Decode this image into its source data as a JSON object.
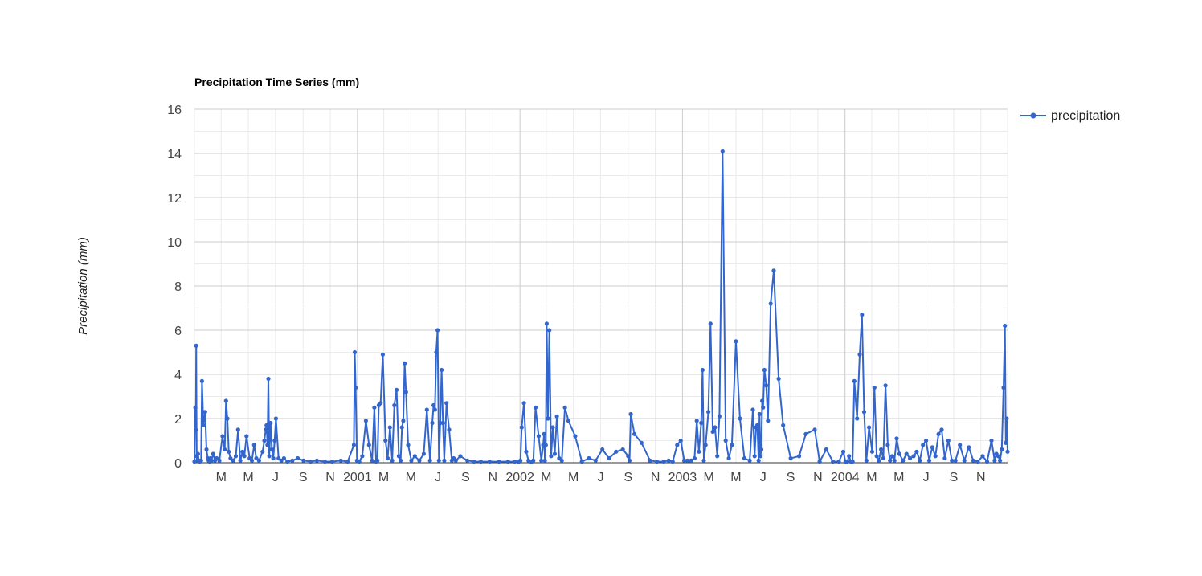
{
  "chart_data": {
    "type": "line",
    "title": "Precipitation Time Series (mm)",
    "xlabel": "",
    "ylabel": "Precipitation (mm)",
    "x_start": "2000-01-01",
    "x_end": "2004-12-31",
    "ylim": [
      0,
      16
    ],
    "y_ticks": [
      "0",
      "2",
      "4",
      "6",
      "8",
      "10",
      "12",
      "14",
      "16"
    ],
    "x_ticks": [
      {
        "label": "M",
        "date": "2000-03-01",
        "major": false
      },
      {
        "label": "M",
        "date": "2000-05-01",
        "major": false
      },
      {
        "label": "J",
        "date": "2000-07-01",
        "major": false
      },
      {
        "label": "S",
        "date": "2000-09-01",
        "major": false
      },
      {
        "label": "N",
        "date": "2000-11-01",
        "major": false
      },
      {
        "label": "2001",
        "date": "2001-01-01",
        "major": true
      },
      {
        "label": "M",
        "date": "2001-03-01",
        "major": false
      },
      {
        "label": "M",
        "date": "2001-05-01",
        "major": false
      },
      {
        "label": "J",
        "date": "2001-07-01",
        "major": false
      },
      {
        "label": "S",
        "date": "2001-09-01",
        "major": false
      },
      {
        "label": "N",
        "date": "2001-11-01",
        "major": false
      },
      {
        "label": "2002",
        "date": "2002-01-01",
        "major": true
      },
      {
        "label": "M",
        "date": "2002-03-01",
        "major": false
      },
      {
        "label": "M",
        "date": "2002-05-01",
        "major": false
      },
      {
        "label": "J",
        "date": "2002-07-01",
        "major": false
      },
      {
        "label": "S",
        "date": "2002-09-01",
        "major": false
      },
      {
        "label": "N",
        "date": "2002-11-01",
        "major": false
      },
      {
        "label": "2003",
        "date": "2003-01-01",
        "major": true
      },
      {
        "label": "M",
        "date": "2003-03-01",
        "major": false
      },
      {
        "label": "M",
        "date": "2003-05-01",
        "major": false
      },
      {
        "label": "J",
        "date": "2003-07-01",
        "major": false
      },
      {
        "label": "S",
        "date": "2003-09-01",
        "major": false
      },
      {
        "label": "N",
        "date": "2003-11-01",
        "major": false
      },
      {
        "label": "2004",
        "date": "2004-01-01",
        "major": true
      },
      {
        "label": "M",
        "date": "2004-03-01",
        "major": false
      },
      {
        "label": "M",
        "date": "2004-05-01",
        "major": false
      },
      {
        "label": "J",
        "date": "2004-07-01",
        "major": false
      },
      {
        "label": "S",
        "date": "2004-09-01",
        "major": false
      },
      {
        "label": "N",
        "date": "2004-11-01",
        "major": false
      }
    ],
    "grid": true,
    "legend_position": "right",
    "colors": {
      "series": "#3366cc",
      "grid_major": "#cccccc",
      "grid_minor": "#ebebeb",
      "baseline": "#333333"
    },
    "series": [
      {
        "name": "precipitation",
        "x": [
          "2000-01-01",
          "2000-01-03",
          "2000-01-04",
          "2000-01-05",
          "2000-01-06",
          "2000-01-07",
          "2000-01-09",
          "2000-01-11",
          "2000-01-13",
          "2000-01-16",
          "2000-01-18",
          "2000-01-21",
          "2000-01-25",
          "2000-01-28",
          "2000-01-31",
          "2000-02-02",
          "2000-02-04",
          "2000-02-06",
          "2000-02-08",
          "2000-02-12",
          "2000-02-16",
          "2000-02-20",
          "2000-02-26",
          "2000-03-04",
          "2000-03-09",
          "2000-03-12",
          "2000-03-15",
          "2000-03-18",
          "2000-03-22",
          "2000-03-28",
          "2000-04-03",
          "2000-04-08",
          "2000-04-13",
          "2000-04-18",
          "2000-04-22",
          "2000-04-27",
          "2000-05-04",
          "2000-05-09",
          "2000-05-14",
          "2000-05-19",
          "2000-05-25",
          "2000-06-02",
          "2000-06-06",
          "2000-06-09",
          "2000-06-11",
          "2000-06-13",
          "2000-06-15",
          "2000-06-17",
          "2000-06-20",
          "2000-06-23",
          "2000-06-26",
          "2000-06-29",
          "2000-07-02",
          "2000-07-08",
          "2000-07-14",
          "2000-07-20",
          "2000-07-28",
          "2000-08-08",
          "2000-08-20",
          "2000-09-02",
          "2000-09-18",
          "2000-10-02",
          "2000-10-20",
          "2000-11-05",
          "2000-11-25",
          "2000-12-10",
          "2000-12-24",
          "2000-12-26",
          "2000-12-28",
          "2000-12-31",
          "2001-01-05",
          "2001-01-12",
          "2001-01-20",
          "2001-01-27",
          "2001-02-03",
          "2001-02-08",
          "2001-02-12",
          "2001-02-15",
          "2001-02-18",
          "2001-02-22",
          "2001-02-27",
          "2001-03-05",
          "2001-03-10",
          "2001-03-15",
          "2001-03-20",
          "2001-03-25",
          "2001-03-30",
          "2001-04-04",
          "2001-04-08",
          "2001-04-11",
          "2001-04-14",
          "2001-04-17",
          "2001-04-20",
          "2001-04-25",
          "2001-05-02",
          "2001-05-10",
          "2001-05-20",
          "2001-05-30",
          "2001-06-06",
          "2001-06-13",
          "2001-06-18",
          "2001-06-21",
          "2001-06-24",
          "2001-06-27",
          "2001-06-30",
          "2001-07-03",
          "2001-07-06",
          "2001-07-09",
          "2001-07-12",
          "2001-07-15",
          "2001-07-20",
          "2001-07-26",
          "2001-08-01",
          "2001-08-05",
          "2001-08-10",
          "2001-08-20",
          "2001-09-05",
          "2001-09-20",
          "2001-10-05",
          "2001-10-25",
          "2001-11-15",
          "2001-12-05",
          "2001-12-20",
          "2001-12-28",
          "2001-12-30",
          "2002-01-02",
          "2002-01-05",
          "2002-01-10",
          "2002-01-15",
          "2002-01-20",
          "2002-01-25",
          "2002-01-28",
          "2002-01-31",
          "2002-02-05",
          "2002-02-12",
          "2002-02-18",
          "2002-02-22",
          "2002-02-24",
          "2002-02-26",
          "2002-02-28",
          "2002-03-02",
          "2002-03-05",
          "2002-03-08",
          "2002-03-12",
          "2002-03-16",
          "2002-03-20",
          "2002-03-25",
          "2002-03-30",
          "2002-04-05",
          "2002-04-12",
          "2002-04-20",
          "2002-05-05",
          "2002-05-20",
          "2002-06-05",
          "2002-06-20",
          "2002-07-05",
          "2002-07-20",
          "2002-08-05",
          "2002-08-20",
          "2002-09-01",
          "2002-09-04",
          "2002-09-07",
          "2002-09-15",
          "2002-10-01",
          "2002-10-20",
          "2002-11-05",
          "2002-11-20",
          "2002-12-01",
          "2002-12-10",
          "2002-12-20",
          "2002-12-28",
          "2003-01-05",
          "2003-01-12",
          "2003-01-20",
          "2003-01-28",
          "2003-02-02",
          "2003-02-07",
          "2003-02-12",
          "2003-02-15",
          "2003-02-18",
          "2003-02-22",
          "2003-02-28",
          "2003-03-05",
          "2003-03-10",
          "2003-03-15",
          "2003-03-20",
          "2003-03-25",
          "2003-04-01",
          "2003-04-08",
          "2003-04-15",
          "2003-04-22",
          "2003-05-01",
          "2003-05-10",
          "2003-05-20",
          "2003-06-01",
          "2003-06-08",
          "2003-06-12",
          "2003-06-15",
          "2003-06-18",
          "2003-06-21",
          "2003-06-23",
          "2003-06-25",
          "2003-06-27",
          "2003-06-29",
          "2003-07-01",
          "2003-07-04",
          "2003-07-08",
          "2003-07-12",
          "2003-07-18",
          "2003-07-25",
          "2003-08-05",
          "2003-08-15",
          "2003-09-01",
          "2003-09-20",
          "2003-10-05",
          "2003-10-25",
          "2003-11-05",
          "2003-11-20",
          "2003-12-05",
          "2003-12-18",
          "2003-12-28",
          "2004-01-02",
          "2004-01-06",
          "2004-01-10",
          "2004-01-14",
          "2004-01-18",
          "2004-01-22",
          "2004-01-28",
          "2004-02-03",
          "2004-02-08",
          "2004-02-13",
          "2004-02-18",
          "2004-02-24",
          "2004-03-02",
          "2004-03-07",
          "2004-03-12",
          "2004-03-17",
          "2004-03-22",
          "2004-03-27",
          "2004-04-01",
          "2004-04-06",
          "2004-04-11",
          "2004-04-16",
          "2004-04-21",
          "2004-04-26",
          "2004-05-02",
          "2004-05-10",
          "2004-05-18",
          "2004-05-26",
          "2004-06-03",
          "2004-06-10",
          "2004-06-17",
          "2004-06-24",
          "2004-07-01",
          "2004-07-08",
          "2004-07-15",
          "2004-07-22",
          "2004-07-29",
          "2004-08-05",
          "2004-08-12",
          "2004-08-20",
          "2004-08-28",
          "2004-09-05",
          "2004-09-15",
          "2004-09-25",
          "2004-10-05",
          "2004-10-15",
          "2004-10-25",
          "2004-11-05",
          "2004-11-15",
          "2004-11-25",
          "2004-12-02",
          "2004-12-06",
          "2004-12-10",
          "2004-12-14",
          "2004-12-18",
          "2004-12-22",
          "2004-12-25",
          "2004-12-27",
          "2004-12-29",
          "2004-12-31"
        ],
        "values": [
          0.05,
          2.5,
          1.5,
          5.3,
          0.3,
          0.1,
          0.4,
          0.1,
          0.05,
          0.1,
          3.7,
          1.7,
          2.3,
          0.6,
          0.2,
          0.1,
          0.05,
          0.2,
          0.1,
          0.4,
          0.1,
          0.2,
          0.1,
          1.2,
          0.6,
          2.8,
          2.0,
          0.5,
          0.2,
          0.1,
          0.3,
          1.5,
          0.1,
          0.5,
          0.3,
          1.2,
          0.2,
          0.1,
          0.8,
          0.2,
          0.1,
          0.5,
          1.0,
          1.5,
          1.7,
          0.8,
          3.8,
          0.3,
          1.8,
          0.6,
          0.2,
          1.0,
          2.0,
          0.2,
          0.1,
          0.2,
          0.05,
          0.1,
          0.2,
          0.1,
          0.05,
          0.1,
          0.05,
          0.05,
          0.1,
          0.05,
          0.8,
          5.0,
          3.4,
          0.1,
          0.05,
          0.3,
          1.9,
          0.8,
          0.1,
          2.5,
          0.05,
          0.1,
          2.6,
          2.7,
          4.9,
          1.0,
          0.2,
          1.6,
          0.1,
          2.6,
          3.3,
          0.3,
          0.1,
          1.6,
          1.9,
          4.5,
          3.2,
          0.8,
          0.1,
          0.3,
          0.1,
          0.4,
          2.4,
          0.1,
          1.8,
          2.6,
          2.4,
          5.0,
          6.0,
          0.1,
          1.8,
          4.2,
          1.8,
          0.1,
          2.7,
          1.5,
          0.1,
          0.2,
          0.1,
          0.3,
          0.1,
          0.05,
          0.05,
          0.05,
          0.05,
          0.05,
          0.05,
          0.05,
          0.05,
          0.1,
          1.6,
          2.7,
          0.5,
          0.1,
          0.05,
          0.05,
          0.1,
          2.5,
          1.2,
          0.1,
          0.8,
          1.3,
          0.1,
          0.8,
          6.3,
          2.0,
          6.0,
          0.3,
          1.6,
          0.4,
          2.1,
          0.2,
          0.1,
          2.5,
          1.9,
          1.2,
          0.05,
          0.2,
          0.1,
          0.6,
          0.2,
          0.5,
          0.6,
          0.3,
          0.1,
          2.2,
          1.3,
          0.9,
          0.1,
          0.05,
          0.05,
          0.1,
          0.05,
          0.8,
          1.0,
          0.1,
          0.1,
          0.1,
          0.2,
          1.9,
          0.5,
          1.8,
          4.2,
          0.1,
          0.8,
          2.3,
          6.3,
          1.4,
          1.6,
          0.3,
          2.1,
          14.1,
          1.0,
          0.2,
          0.8,
          5.5,
          2.0,
          0.2,
          0.1,
          2.4,
          0.3,
          1.6,
          1.7,
          0.1,
          2.2,
          0.3,
          0.6,
          2.8,
          2.5,
          4.2,
          3.5,
          1.9,
          7.2,
          8.7,
          3.8,
          1.7,
          0.2,
          0.3,
          1.3,
          1.5,
          0.05,
          0.6,
          0.05,
          0.05,
          0.5,
          0.05,
          0.05,
          0.3,
          0.05,
          0.05,
          3.7,
          2.0,
          4.9,
          6.7,
          2.3,
          0.1,
          1.6,
          0.5,
          3.4,
          0.3,
          0.1,
          0.6,
          0.2,
          3.5,
          0.8,
          0.1,
          0.3,
          0.1,
          1.1,
          0.4,
          0.1,
          0.4,
          0.2,
          0.3,
          0.5,
          0.1,
          0.8,
          1.0,
          0.1,
          0.7,
          0.3,
          1.3,
          1.5,
          0.2,
          1.0,
          0.1,
          0.1,
          0.8,
          0.1,
          0.7,
          0.1,
          0.05,
          0.3,
          0.05,
          1.0,
          0.1,
          0.4,
          0.3,
          0.1,
          0.6,
          3.4,
          6.2,
          0.9,
          2.0,
          0.5
        ]
      }
    ]
  }
}
